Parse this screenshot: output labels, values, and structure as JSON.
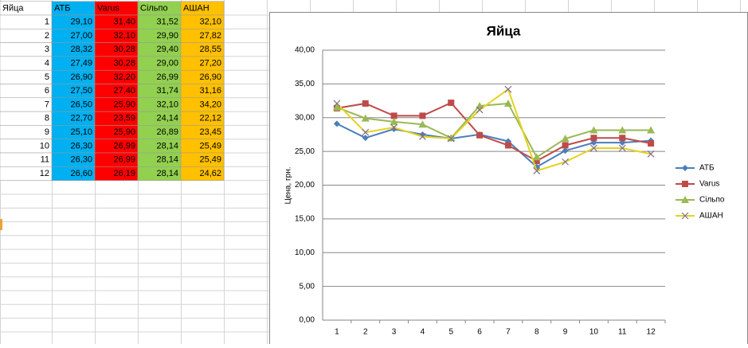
{
  "table": {
    "header": [
      "Яйца",
      "АТБ",
      "Varus",
      "Сільпо",
      "АШАН"
    ],
    "header_colors": [
      "#ffffff",
      "#00b0f0",
      "#ff0000",
      "#92d050",
      "#ffc000"
    ],
    "rows": [
      [
        "1",
        "29,10",
        "31,40",
        "31,52",
        "32,10"
      ],
      [
        "2",
        "27,00",
        "32,10",
        "29,90",
        "27,82"
      ],
      [
        "3",
        "28,32",
        "30,28",
        "29,40",
        "28,55"
      ],
      [
        "4",
        "27,49",
        "30,28",
        "29,00",
        "27,20"
      ],
      [
        "5",
        "26,90",
        "32,20",
        "26,99",
        "26,90"
      ],
      [
        "6",
        "27,50",
        "27,40",
        "31,74",
        "31,16"
      ],
      [
        "7",
        "26,50",
        "25,90",
        "32,10",
        "34,20"
      ],
      [
        "8",
        "22,70",
        "23,59",
        "24,14",
        "22,12"
      ],
      [
        "9",
        "25,10",
        "25,90",
        "26,89",
        "23,45"
      ],
      [
        "10",
        "26,30",
        "26,99",
        "28,14",
        "25,49"
      ],
      [
        "11",
        "26,30",
        "26,99",
        "28,14",
        "25,49"
      ],
      [
        "12",
        "26,60",
        "26,19",
        "28,14",
        "24,62"
      ]
    ]
  },
  "chart_data": {
    "type": "line",
    "title": "Яйца",
    "y_label": "Цена, грн.",
    "categories": [
      "1",
      "2",
      "3",
      "4",
      "5",
      "6",
      "7",
      "8",
      "9",
      "10",
      "11",
      "12"
    ],
    "series": [
      {
        "name": "АТБ",
        "color": "#4a7ebb",
        "marker": "diamond",
        "values": [
          29.1,
          27.0,
          28.32,
          27.49,
          26.9,
          27.5,
          26.5,
          22.7,
          25.1,
          26.3,
          26.3,
          26.6
        ]
      },
      {
        "name": "Varus",
        "color": "#be4b48",
        "marker": "square",
        "values": [
          31.4,
          32.1,
          30.28,
          30.28,
          32.2,
          27.4,
          25.9,
          23.59,
          25.9,
          26.99,
          26.99,
          26.19
        ]
      },
      {
        "name": "Сільпо",
        "color": "#98b954",
        "marker": "triangle",
        "values": [
          31.52,
          29.9,
          29.4,
          29.0,
          26.99,
          31.74,
          32.1,
          24.14,
          26.89,
          28.14,
          28.14,
          28.14
        ]
      },
      {
        "name": "АШАН",
        "color": "#e6d21e",
        "marker": "x",
        "values": [
          32.1,
          27.82,
          28.55,
          27.2,
          26.9,
          31.16,
          34.2,
          22.12,
          23.45,
          25.49,
          25.49,
          24.62
        ]
      }
    ],
    "ylim": [
      0,
      40
    ],
    "yticks": [
      {
        "value": 0,
        "label": "0,00"
      },
      {
        "value": 5,
        "label": "5,00"
      },
      {
        "value": 10,
        "label": "10,00"
      },
      {
        "value": 15,
        "label": "15,00"
      },
      {
        "value": 20,
        "label": "20,00"
      },
      {
        "value": 25,
        "label": "25,00"
      },
      {
        "value": 30,
        "label": "30,00"
      },
      {
        "value": 35,
        "label": "35,00"
      },
      {
        "value": 40,
        "label": "40,00"
      }
    ],
    "grid": true,
    "legend": "right"
  }
}
